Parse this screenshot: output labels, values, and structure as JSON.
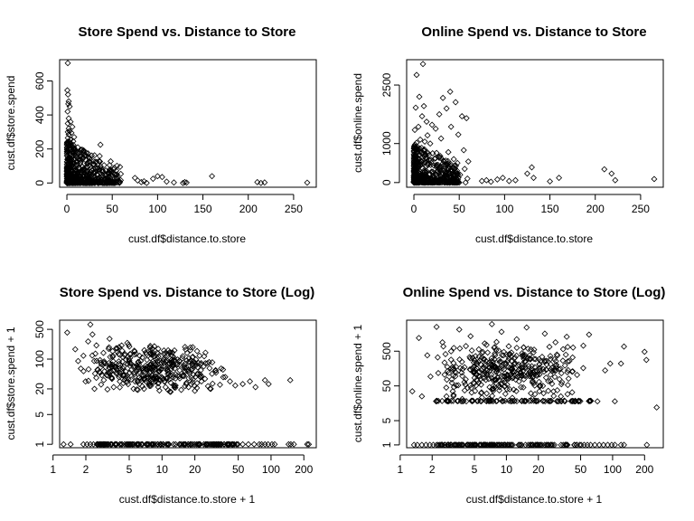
{
  "chart_data": [
    {
      "type": "scatter",
      "title": "Store Spend vs. Distance to Store",
      "xlabel": "cust.df$distance.to.store",
      "ylabel": "cust.df$store.spend",
      "xscale": "linear",
      "yscale": "linear",
      "xlim": [
        -8,
        275
      ],
      "ylim": [
        -25,
        725
      ],
      "xticks": [
        0,
        50,
        100,
        150,
        200,
        250
      ],
      "yticks": [
        0,
        200,
        400,
        600
      ],
      "grid": false,
      "points": [
        [
          1,
          705
        ],
        [
          0.5,
          545
        ],
        [
          1.2,
          520
        ],
        [
          2,
          480
        ],
        [
          1.5,
          465
        ],
        [
          3,
          450
        ],
        [
          0.8,
          420
        ],
        [
          2,
          380
        ],
        [
          4,
          360
        ],
        [
          1,
          350
        ],
        [
          6,
          330
        ],
        [
          2,
          320
        ],
        [
          3,
          305
        ],
        [
          1,
          300
        ],
        [
          5,
          295
        ],
        [
          2,
          285
        ],
        [
          8,
          270
        ],
        [
          1,
          265
        ],
        [
          4,
          255
        ],
        [
          7,
          245
        ],
        [
          3,
          240
        ],
        [
          37,
          225
        ],
        [
          12,
          210
        ],
        [
          2,
          200
        ],
        [
          9,
          195
        ],
        [
          5,
          185
        ],
        [
          14,
          180
        ],
        [
          3,
          175
        ],
        [
          20,
          165
        ],
        [
          6,
          160
        ],
        [
          11,
          150
        ],
        [
          1,
          145
        ],
        [
          17,
          140
        ],
        [
          8,
          135
        ],
        [
          4,
          130
        ],
        [
          25,
          125
        ],
        [
          15,
          120
        ],
        [
          2,
          115
        ],
        [
          30,
          110
        ],
        [
          10,
          105
        ],
        [
          6,
          100
        ],
        [
          22,
          95
        ],
        [
          13,
          90
        ],
        [
          3,
          85
        ],
        [
          35,
          82
        ],
        [
          18,
          80
        ],
        [
          9,
          75
        ],
        [
          28,
          72
        ],
        [
          5,
          70
        ],
        [
          40,
          68
        ],
        [
          16,
          65
        ],
        [
          2,
          62
        ],
        [
          12,
          60
        ],
        [
          45,
          58
        ],
        [
          24,
          55
        ],
        [
          7,
          52
        ],
        [
          33,
          50
        ],
        [
          19,
          48
        ],
        [
          4,
          45
        ],
        [
          50,
          43
        ],
        [
          27,
          40
        ],
        [
          10,
          38
        ],
        [
          38,
          36
        ],
        [
          14,
          33
        ],
        [
          3,
          30
        ],
        [
          55,
          28
        ],
        [
          21,
          26
        ],
        [
          8,
          24
        ],
        [
          32,
          22
        ],
        [
          16,
          20
        ],
        [
          1,
          18
        ],
        [
          42,
          16
        ],
        [
          26,
          14
        ],
        [
          11,
          12
        ],
        [
          48,
          10
        ],
        [
          18,
          8
        ],
        [
          6,
          6
        ],
        [
          36,
          4
        ],
        [
          23,
          2
        ],
        [
          2,
          1
        ],
        [
          52,
          1
        ],
        [
          30,
          0
        ],
        [
          13,
          0
        ],
        [
          0.5,
          0
        ],
        [
          44,
          0
        ],
        [
          20,
          0
        ],
        [
          5,
          0
        ],
        [
          58,
          0
        ],
        [
          34,
          0
        ],
        [
          9,
          0
        ],
        [
          27,
          0
        ],
        [
          15,
          0
        ],
        [
          39,
          0
        ],
        [
          3,
          0
        ],
        [
          47,
          0
        ],
        [
          24,
          0
        ],
        [
          12,
          0
        ],
        [
          7,
          0
        ],
        [
          31,
          0
        ],
        [
          17,
          0
        ],
        [
          75,
          30
        ],
        [
          78,
          15
        ],
        [
          82,
          5
        ],
        [
          85,
          10
        ],
        [
          88,
          0
        ],
        [
          95,
          25
        ],
        [
          100,
          40
        ],
        [
          105,
          35
        ],
        [
          110,
          8
        ],
        [
          118,
          3
        ],
        [
          128,
          0
        ],
        [
          130,
          5
        ],
        [
          132,
          2
        ],
        [
          160,
          40
        ],
        [
          210,
          5
        ],
        [
          214,
          0
        ],
        [
          218,
          3
        ],
        [
          265,
          2
        ]
      ],
      "cluster": {
        "xmax": 60,
        "ymax": 250
      }
    },
    {
      "type": "scatter",
      "title": "Online Spend vs. Distance to Store",
      "xlabel": "cust.df$distance.to.store",
      "ylabel": "cust.df$online.spend",
      "xscale": "linear",
      "yscale": "linear",
      "xlim": [
        -8,
        275
      ],
      "ylim": [
        -120,
        3150
      ],
      "xticks": [
        0,
        50,
        100,
        150,
        200,
        250
      ],
      "yticks": [
        0,
        1000,
        2500
      ],
      "grid": false,
      "points": [
        [
          10,
          3040
        ],
        [
          3,
          2760
        ],
        [
          40,
          2330
        ],
        [
          6,
          2200
        ],
        [
          32,
          2170
        ],
        [
          46,
          2060
        ],
        [
          11,
          1960
        ],
        [
          2,
          1920
        ],
        [
          36,
          1900
        ],
        [
          28,
          1750
        ],
        [
          9,
          1700
        ],
        [
          53,
          1700
        ],
        [
          58,
          1650
        ],
        [
          14,
          1560
        ],
        [
          20,
          1480
        ],
        [
          5,
          1430
        ],
        [
          41,
          1430
        ],
        [
          24,
          1380
        ],
        [
          1,
          1350
        ],
        [
          49,
          1230
        ],
        [
          15,
          1210
        ],
        [
          30,
          1130
        ],
        [
          7,
          1100
        ],
        [
          12,
          1050
        ],
        [
          3,
          1020
        ],
        [
          18,
          1000
        ],
        [
          55,
          830
        ],
        [
          38,
          780
        ],
        [
          25,
          760
        ],
        [
          29,
          680
        ],
        [
          44,
          600
        ],
        [
          60,
          540
        ],
        [
          19,
          520
        ],
        [
          48,
          500
        ],
        [
          33,
          450
        ],
        [
          39,
          400
        ],
        [
          56,
          350
        ],
        [
          26,
          300
        ],
        [
          43,
          250
        ],
        [
          51,
          200
        ],
        [
          34,
          150
        ],
        [
          59,
          100
        ],
        [
          42,
          50
        ],
        [
          57,
          0
        ],
        [
          28,
          0
        ],
        [
          50,
          0
        ],
        [
          37,
          0
        ],
        [
          75,
          40
        ],
        [
          80,
          60
        ],
        [
          85,
          20
        ],
        [
          92,
          80
        ],
        [
          98,
          120
        ],
        [
          105,
          40
        ],
        [
          112,
          60
        ],
        [
          125,
          230
        ],
        [
          130,
          390
        ],
        [
          132,
          120
        ],
        [
          150,
          30
        ],
        [
          160,
          120
        ],
        [
          210,
          340
        ],
        [
          218,
          230
        ],
        [
          222,
          60
        ],
        [
          265,
          90
        ]
      ],
      "cluster": {
        "xmax": 50,
        "ymax": 1000
      }
    },
    {
      "type": "scatter",
      "title": "Store Spend vs. Distance to Store (Log)",
      "xlabel": "cust.df$distance.to.store + 1",
      "ylabel": "cust.df$store.spend + 1",
      "xscale": "log",
      "yscale": "log",
      "xlim": [
        1.15,
        260
      ],
      "ylim": [
        0.83,
        820
      ],
      "xticks": [
        1,
        2,
        5,
        10,
        20,
        50,
        100,
        200
      ],
      "yticks": [
        1,
        5,
        20,
        100,
        500
      ],
      "grid": false,
      "points": [
        [
          1.35,
          420
        ],
        [
          1.6,
          170
        ],
        [
          1.7,
          90
        ],
        [
          1.8,
          60
        ],
        [
          1.9,
          120
        ],
        [
          2.1,
          260
        ],
        [
          2.2,
          650
        ],
        [
          2.3,
          380
        ],
        [
          2.5,
          210
        ],
        [
          2.7,
          95
        ],
        [
          2.9,
          140
        ],
        [
          3.1,
          42
        ],
        [
          3.3,
          300
        ],
        [
          3.5,
          75
        ],
        [
          3.8,
          180
        ],
        [
          4.1,
          30
        ],
        [
          4.4,
          110
        ],
        [
          4.8,
          240
        ],
        [
          5.2,
          55
        ],
        [
          5.6,
          150
        ],
        [
          6.1,
          85
        ],
        [
          6.6,
          23
        ],
        [
          7.2,
          130
        ],
        [
          7.8,
          48
        ],
        [
          8.5,
          200
        ],
        [
          9.2,
          65
        ],
        [
          10,
          35
        ],
        [
          11,
          95
        ],
        [
          12,
          28
        ],
        [
          13,
          160
        ],
        [
          14.5,
          40
        ],
        [
          16,
          70
        ],
        [
          17.5,
          22
        ],
        [
          19,
          110
        ],
        [
          21,
          45
        ],
        [
          23,
          30
        ],
        [
          25,
          80
        ],
        [
          28,
          20
        ],
        [
          31,
          55
        ],
        [
          34,
          25
        ],
        [
          38,
          38
        ],
        [
          42,
          30
        ],
        [
          47,
          24
        ],
        [
          55,
          26
        ],
        [
          64,
          30
        ],
        [
          72,
          22
        ],
        [
          88,
          32
        ],
        [
          95,
          26
        ],
        [
          150,
          32
        ],
        [
          2.4,
          20
        ],
        [
          3.6,
          22
        ],
        [
          20,
          18
        ],
        [
          12,
          17
        ],
        [
          6,
          19
        ]
      ],
      "cluster_band": {
        "x": [
          1.8,
          40
        ],
        "ylog": [
          15,
          250
        ]
      },
      "zero_row": {
        "y": 1,
        "scatter_x": [
          1.25,
          1.45,
          1.9,
          2.05,
          2.2,
          2.35,
          2.6,
          55,
          62,
          70,
          78,
          82,
          88,
          94,
          102,
          108,
          145,
          152,
          162,
          215,
          222
        ],
        "dense_range": [
          2.5,
          50
        ]
      }
    },
    {
      "type": "scatter",
      "title": "Online Spend vs. Distance to Store (Log)",
      "xlabel": "cust.df$distance.to.store + 1",
      "ylabel": "cust.df$online.spend + 1",
      "xscale": "log",
      "yscale": "log",
      "xlim": [
        1.15,
        300
      ],
      "ylim": [
        0.83,
        3900
      ],
      "xticks": [
        1,
        2,
        5,
        10,
        20,
        50,
        100,
        200
      ],
      "yticks": [
        1,
        5,
        50,
        500
      ],
      "grid": false,
      "points": [
        [
          1.3,
          35
        ],
        [
          1.5,
          1200
        ],
        [
          1.6,
          25
        ],
        [
          1.8,
          380
        ],
        [
          2.2,
          2500
        ],
        [
          2.5,
          900
        ],
        [
          2.8,
          18
        ],
        [
          3.2,
          620
        ],
        [
          3.6,
          2100
        ],
        [
          4.1,
          55
        ],
        [
          4.6,
          1350
        ],
        [
          5.2,
          240
        ],
        [
          5.8,
          18
        ],
        [
          6.5,
          760
        ],
        [
          7.3,
          3000
        ],
        [
          8.1,
          150
        ],
        [
          9,
          1800
        ],
        [
          10,
          400
        ],
        [
          11,
          18
        ],
        [
          12.5,
          1100
        ],
        [
          14,
          95
        ],
        [
          15.5,
          2400
        ],
        [
          17,
          560
        ],
        [
          19,
          18
        ],
        [
          21,
          260
        ],
        [
          23,
          1600
        ],
        [
          26,
          70
        ],
        [
          29,
          900
        ],
        [
          33,
          18
        ],
        [
          37,
          1300
        ],
        [
          42,
          330
        ],
        [
          48,
          18
        ],
        [
          53,
          720
        ],
        [
          60,
          1500
        ],
        [
          72,
          18
        ],
        [
          85,
          140
        ],
        [
          95,
          220
        ],
        [
          105,
          18
        ],
        [
          120,
          220
        ],
        [
          128,
          680
        ],
        [
          200,
          480
        ],
        [
          208,
          280
        ],
        [
          260,
          12
        ]
      ],
      "cluster_band": {
        "x": [
          1.8,
          60
        ],
        "ylog": [
          18,
          1000
        ]
      },
      "floor_row": {
        "y": 18,
        "range": [
          2,
          65
        ]
      },
      "zero_row": {
        "y": 1,
        "scatter_x": [
          1.35,
          1.45,
          1.6,
          1.75,
          1.9,
          2.05,
          62,
          68,
          75,
          82,
          90,
          98,
          105,
          120,
          128,
          210
        ],
        "dense_range": [
          2.2,
          60
        ]
      }
    }
  ]
}
